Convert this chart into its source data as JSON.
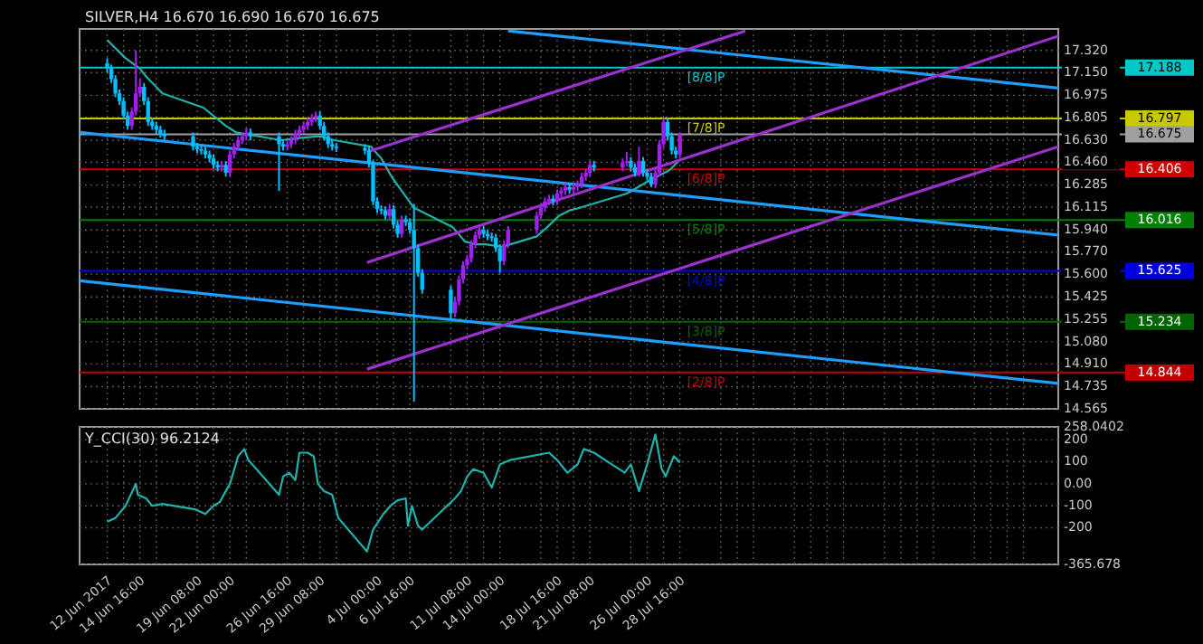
{
  "chart_data": [
    {
      "type": "candlestick",
      "title": "SILVER,H4 16.670 16.690 16.670 16.675",
      "tick_labels": "y",
      "grid": true,
      "x": [
        "2017-06-12T00:00",
        "2017-06-12T08:00",
        "2017-06-12T16:00",
        "2017-06-13T00:00",
        "2017-06-13T08:00",
        "2017-06-13T16:00",
        "2017-06-14T00:00",
        "2017-06-14T08:00",
        "2017-06-14T16:00",
        "2017-06-15T00:00",
        "2017-06-15T08:00",
        "2017-06-15T16:00",
        "2017-06-16T00:00",
        "2017-06-16T08:00",
        "2017-06-16T16:00",
        "2017-06-19T00:00",
        "2017-06-19T08:00",
        "2017-06-19T16:00",
        "2017-06-20T00:00",
        "2017-06-20T08:00",
        "2017-06-20T16:00",
        "2017-06-21T00:00",
        "2017-06-21T08:00",
        "2017-06-21T16:00",
        "2017-06-22T00:00",
        "2017-06-22T08:00",
        "2017-06-22T16:00",
        "2017-06-23T00:00",
        "2017-06-23T08:00",
        "2017-06-23T16:00",
        "2017-06-26T00:00",
        "2017-06-26T08:00",
        "2017-06-26T16:00",
        "2017-06-27T00:00",
        "2017-06-27T08:00",
        "2017-06-27T16:00",
        "2017-06-28T00:00",
        "2017-06-28T08:00",
        "2017-06-28T16:00",
        "2017-06-29T00:00",
        "2017-06-29T08:00",
        "2017-06-29T16:00",
        "2017-06-30T00:00",
        "2017-06-30T08:00",
        "2017-06-30T16:00",
        "2017-07-03T00:00",
        "2017-07-03T08:00",
        "2017-07-03T16:00",
        "2017-07-04T00:00",
        "2017-07-04T08:00",
        "2017-07-04T16:00",
        "2017-07-05T00:00",
        "2017-07-05T08:00",
        "2017-07-05T16:00",
        "2017-07-06T00:00",
        "2017-07-06T08:00",
        "2017-07-06T16:00",
        "2017-07-07T00:00",
        "2017-07-07T08:00",
        "2017-07-07T16:00",
        "2017-07-10T00:00",
        "2017-07-10T08:00",
        "2017-07-10T16:00",
        "2017-07-11T00:00",
        "2017-07-11T08:00",
        "2017-07-11T16:00",
        "2017-07-12T00:00",
        "2017-07-12T08:00",
        "2017-07-12T16:00",
        "2017-07-13T00:00",
        "2017-07-13T08:00",
        "2017-07-13T16:00",
        "2017-07-14T00:00",
        "2017-07-14T08:00",
        "2017-07-14T16:00",
        "2017-07-17T00:00",
        "2017-07-17T08:00",
        "2017-07-17T16:00",
        "2017-07-18T00:00",
        "2017-07-18T08:00",
        "2017-07-18T16:00",
        "2017-07-19T00:00",
        "2017-07-19T08:00",
        "2017-07-19T16:00",
        "2017-07-20T00:00",
        "2017-07-20T08:00",
        "2017-07-20T16:00",
        "2017-07-21T00:00",
        "2017-07-21T08:00",
        "2017-07-21T16:00",
        "2017-07-24T00:00",
        "2017-07-24T08:00",
        "2017-07-24T16:00",
        "2017-07-25T00:00",
        "2017-07-25T08:00",
        "2017-07-25T16:00",
        "2017-07-26T00:00",
        "2017-07-26T08:00",
        "2017-07-26T16:00",
        "2017-07-27T00:00",
        "2017-07-27T08:00",
        "2017-07-27T16:00",
        "2017-07-28T00:00",
        "2017-07-28T08:00",
        "2017-07-28T16:00"
      ],
      "ohlc": [
        [
          17.22,
          17.26,
          17.15,
          17.18
        ],
        [
          17.18,
          17.21,
          17.07,
          17.1
        ],
        [
          17.1,
          17.13,
          16.96,
          16.99
        ],
        [
          16.99,
          17.02,
          16.9,
          16.93
        ],
        [
          16.93,
          16.96,
          16.79,
          16.82
        ],
        [
          16.82,
          16.85,
          16.71,
          16.74
        ],
        [
          16.74,
          16.88,
          16.71,
          16.85
        ],
        [
          16.85,
          17.32,
          16.82,
          16.99
        ],
        [
          16.99,
          17.1,
          16.96,
          17.04
        ],
        [
          17.04,
          17.07,
          16.9,
          16.93
        ],
        [
          16.93,
          16.96,
          16.74,
          16.77
        ],
        [
          16.77,
          16.8,
          16.71,
          16.74
        ],
        [
          16.74,
          16.77,
          16.68,
          16.71
        ],
        [
          16.71,
          16.74,
          16.65,
          16.68
        ],
        [
          16.68,
          16.71,
          16.63,
          16.66
        ],
        [
          16.66,
          16.69,
          16.55,
          16.58
        ],
        [
          16.58,
          16.61,
          16.53,
          16.56
        ],
        [
          16.56,
          16.59,
          16.52,
          16.55
        ],
        [
          16.55,
          16.58,
          16.49,
          16.52
        ],
        [
          16.52,
          16.55,
          16.46,
          16.49
        ],
        [
          16.49,
          16.52,
          16.41,
          16.44
        ],
        [
          16.44,
          16.47,
          16.39,
          16.42
        ],
        [
          16.42,
          16.47,
          16.39,
          16.44
        ],
        [
          16.44,
          16.47,
          16.35,
          16.38
        ],
        [
          16.38,
          16.55,
          16.35,
          16.52
        ],
        [
          16.52,
          16.61,
          16.49,
          16.58
        ],
        [
          16.58,
          16.66,
          16.55,
          16.63
        ],
        [
          16.63,
          16.69,
          16.6,
          16.66
        ],
        [
          16.66,
          16.72,
          16.63,
          16.69
        ],
        [
          16.69,
          16.72,
          16.63,
          16.66
        ],
        [
          16.66,
          16.69,
          16.24,
          16.6
        ],
        [
          16.6,
          16.63,
          16.55,
          16.58
        ],
        [
          16.58,
          16.63,
          16.55,
          16.6
        ],
        [
          16.6,
          16.66,
          16.57,
          16.63
        ],
        [
          16.63,
          16.71,
          16.6,
          16.68
        ],
        [
          16.68,
          16.74,
          16.65,
          16.71
        ],
        [
          16.71,
          16.77,
          16.68,
          16.74
        ],
        [
          16.74,
          16.8,
          16.71,
          16.77
        ],
        [
          16.77,
          16.83,
          16.74,
          16.8
        ],
        [
          16.8,
          16.85,
          16.77,
          16.82
        ],
        [
          16.82,
          16.85,
          16.71,
          16.74
        ],
        [
          16.74,
          16.77,
          16.63,
          16.66
        ],
        [
          16.66,
          16.69,
          16.57,
          16.6
        ],
        [
          16.6,
          16.63,
          16.55,
          16.58
        ],
        [
          16.58,
          16.61,
          16.54,
          16.57
        ],
        [
          16.57,
          16.6,
          16.52,
          16.55
        ],
        [
          16.55,
          16.58,
          16.42,
          16.45
        ],
        [
          16.45,
          16.48,
          16.13,
          16.16
        ],
        [
          16.16,
          16.19,
          16.07,
          16.1
        ],
        [
          16.1,
          16.13,
          16.06,
          16.09
        ],
        [
          16.09,
          16.12,
          16.02,
          16.05
        ],
        [
          16.05,
          16.14,
          16.02,
          16.1
        ],
        [
          16.1,
          16.13,
          15.95,
          15.98
        ],
        [
          15.98,
          16.01,
          15.88,
          15.91
        ],
        [
          15.91,
          16.05,
          15.88,
          16.02
        ],
        [
          16.02,
          16.05,
          15.97,
          16.0
        ],
        [
          16.0,
          16.03,
          15.91,
          15.94
        ],
        [
          15.94,
          16.14,
          14.62,
          15.8
        ],
        [
          15.8,
          15.83,
          15.58,
          15.61
        ],
        [
          15.61,
          15.64,
          15.45,
          15.48
        ],
        [
          15.48,
          15.51,
          15.25,
          15.3
        ],
        [
          15.3,
          15.42,
          15.27,
          15.39
        ],
        [
          15.39,
          15.59,
          15.36,
          15.56
        ],
        [
          15.56,
          15.7,
          15.53,
          15.67
        ],
        [
          15.67,
          15.75,
          15.64,
          15.72
        ],
        [
          15.72,
          15.86,
          15.69,
          15.83
        ],
        [
          15.83,
          15.93,
          15.8,
          15.9
        ],
        [
          15.9,
          15.97,
          15.87,
          15.94
        ],
        [
          15.94,
          15.97,
          15.88,
          15.91
        ],
        [
          15.91,
          15.94,
          15.86,
          15.89
        ],
        [
          15.89,
          15.92,
          15.85,
          15.88
        ],
        [
          15.88,
          15.91,
          15.77,
          15.8
        ],
        [
          15.8,
          15.83,
          15.61,
          15.7
        ],
        [
          15.7,
          15.86,
          15.67,
          15.83
        ],
        [
          15.83,
          15.97,
          15.8,
          15.94
        ],
        [
          15.94,
          16.08,
          15.91,
          16.05
        ],
        [
          16.05,
          16.14,
          16.02,
          16.11
        ],
        [
          16.11,
          16.19,
          16.08,
          16.16
        ],
        [
          16.16,
          16.21,
          16.13,
          16.18
        ],
        [
          16.18,
          16.21,
          16.13,
          16.16
        ],
        [
          16.16,
          16.25,
          16.13,
          16.22
        ],
        [
          16.22,
          16.27,
          16.19,
          16.24
        ],
        [
          16.24,
          16.3,
          16.21,
          16.27
        ],
        [
          16.27,
          16.3,
          16.22,
          16.25
        ],
        [
          16.25,
          16.3,
          16.22,
          16.27
        ],
        [
          16.27,
          16.32,
          16.24,
          16.29
        ],
        [
          16.29,
          16.38,
          16.26,
          16.35
        ],
        [
          16.35,
          16.41,
          16.32,
          16.38
        ],
        [
          16.38,
          16.47,
          16.35,
          16.44
        ],
        [
          16.44,
          16.47,
          16.39,
          16.42
        ],
        [
          16.42,
          16.49,
          16.39,
          16.46
        ],
        [
          16.46,
          16.54,
          16.43,
          16.47
        ],
        [
          16.47,
          16.5,
          16.39,
          16.42
        ],
        [
          16.42,
          16.45,
          16.35,
          16.38
        ],
        [
          16.38,
          16.58,
          16.35,
          16.47
        ],
        [
          16.47,
          16.5,
          16.35,
          16.38
        ],
        [
          16.38,
          16.41,
          16.32,
          16.35
        ],
        [
          16.35,
          16.38,
          16.27,
          16.29
        ],
        [
          16.29,
          16.41,
          16.26,
          16.38
        ],
        [
          16.38,
          16.63,
          16.35,
          16.6
        ],
        [
          16.6,
          16.8,
          16.57,
          16.77
        ],
        [
          16.77,
          16.8,
          16.63,
          16.66
        ],
        [
          16.66,
          16.69,
          16.52,
          16.55
        ],
        [
          16.55,
          16.58,
          16.49,
          16.52
        ],
        [
          16.52,
          16.69,
          16.49,
          16.675
        ]
      ],
      "colors": [
        "#00bfff",
        "#00bfff",
        "#00bfff",
        "#00bfff",
        "#00bfff",
        "#00bfff",
        "#a020f0",
        "#a020f0",
        "#a020f0",
        "#00bfff",
        "#00bfff",
        "#00bfff",
        "#00bfff",
        "#00bfff",
        "#00bfff",
        "#00bfff",
        "#00bfff",
        "#00bfff",
        "#00bfff",
        "#00bfff",
        "#00bfff",
        "#00bfff",
        "#a020f0",
        "#00bfff",
        "#a020f0",
        "#a020f0",
        "#a020f0",
        "#a020f0",
        "#a020f0",
        "#00bfff",
        "#00bfff",
        "#00bfff",
        "#a020f0",
        "#a020f0",
        "#a020f0",
        "#a020f0",
        "#a020f0",
        "#a020f0",
        "#a020f0",
        "#a020f0",
        "#00bfff",
        "#00bfff",
        "#00bfff",
        "#00bfff",
        "#00bfff",
        "#00bfff",
        "#00bfff",
        "#00bfff",
        "#00bfff",
        "#00bfff",
        "#00bfff",
        "#a020f0",
        "#00bfff",
        "#00bfff",
        "#a020f0",
        "#00bfff",
        "#00bfff",
        "#00bfff",
        "#00bfff",
        "#00bfff",
        "#00bfff",
        "#a020f0",
        "#a020f0",
        "#a020f0",
        "#a020f0",
        "#a020f0",
        "#a020f0",
        "#a020f0",
        "#00bfff",
        "#00bfff",
        "#00bfff",
        "#00bfff",
        "#00bfff",
        "#a020f0",
        "#a020f0",
        "#a020f0",
        "#a020f0",
        "#a020f0",
        "#a020f0",
        "#00bfff",
        "#a020f0",
        "#a020f0",
        "#a020f0",
        "#00bfff",
        "#a020f0",
        "#a020f0",
        "#a020f0",
        "#a020f0",
        "#a020f0",
        "#00bfff",
        "#a020f0",
        "#a020f0",
        "#00bfff",
        "#00bfff",
        "#a020f0",
        "#00bfff",
        "#00bfff",
        "#00bfff",
        "#a020f0",
        "#a020f0",
        "#a020f0",
        "#00bfff",
        "#00bfff",
        "#00bfff",
        "#a020f0"
      ],
      "series": [
        {
          "type": "line",
          "color": "#20b2aa",
          "x": [
            "2017-06-12T00:00",
            "2017-06-13T12:00",
            "2017-06-14T16:00",
            "2017-06-15T04:00",
            "2017-06-16T12:00",
            "2017-06-19T20:00",
            "2017-06-21T16:00",
            "2017-06-22T12:00",
            "2017-06-26T04:00",
            "2017-06-28T00:00",
            "2017-06-29T08:00",
            "2017-06-30T12:00",
            "2017-07-03T12:00",
            "2017-07-04T08:00",
            "2017-07-05T04:00",
            "2017-07-06T00:00",
            "2017-07-07T00:00",
            "2017-07-10T04:00",
            "2017-07-11T04:00",
            "2017-07-12T00:00",
            "2017-07-12T20:00",
            "2017-07-14T04:00",
            "2017-07-17T00:00",
            "2017-07-17T20:00",
            "2017-07-18T20:00",
            "2017-07-19T16:00",
            "2017-07-20T12:00",
            "2017-07-24T08:00",
            "2017-07-26T00:00",
            "2017-07-27T20:00",
            "2017-07-28T16:00"
          ],
          "values": [
            17.4,
            17.26,
            17.18,
            17.12,
            16.99,
            16.88,
            16.74,
            16.69,
            16.63,
            16.65,
            16.66,
            16.63,
            16.58,
            16.49,
            16.35,
            16.24,
            16.11,
            15.96,
            15.85,
            15.83,
            15.83,
            15.81,
            15.89,
            15.96,
            16.05,
            16.09,
            16.11,
            16.22,
            16.31,
            16.4,
            16.48
          ]
        },
        {
          "type": "line",
          "color": "#1e9fff",
          "x": [
            "2017-06-09T18:00",
            "2017-08-28T12:00"
          ],
          "values": [
            16.69,
            15.9
          ]
        },
        {
          "type": "line",
          "color": "#1e9fff",
          "x": [
            "2017-06-09T18:00",
            "2017-08-28T12:00"
          ],
          "values": [
            15.55,
            14.76
          ]
        },
        {
          "type": "line",
          "color": "#1e9fff",
          "x": [
            "2017-07-14T16:00",
            "2017-08-28T12:00"
          ],
          "values": [
            17.47,
            17.03
          ]
        },
        {
          "type": "line",
          "color": "#9932cc",
          "x": [
            "2017-07-03T04:00",
            "2017-08-03T00:00"
          ],
          "values": [
            16.54,
            17.47
          ]
        },
        {
          "type": "line",
          "color": "#9932cc",
          "x": [
            "2017-07-03T04:00",
            "2017-08-28T12:00"
          ],
          "values": [
            15.69,
            17.43
          ]
        },
        {
          "type": "line",
          "color": "#9932cc",
          "x": [
            "2017-07-03T04:00",
            "2017-08-28T12:00"
          ],
          "values": [
            14.87,
            16.58
          ]
        }
      ],
      "ref_lines": [
        {
          "axis": "y",
          "value": 17.188,
          "label": "17.188",
          "color": "#00c8c8"
        },
        {
          "axis": "y",
          "value": 16.797,
          "label": "16.797",
          "color": "#c8c800"
        },
        {
          "axis": "y",
          "value": 16.406,
          "label": "16.406",
          "color": "#d00000"
        },
        {
          "axis": "y",
          "value": 16.016,
          "label": "16.016",
          "color": "#008000"
        },
        {
          "axis": "y",
          "value": 15.625,
          "label": "15.625",
          "color": "#0000e0"
        },
        {
          "axis": "y",
          "value": 15.234,
          "label": "15.234",
          "color": "#006400"
        },
        {
          "axis": "y",
          "value": 14.844,
          "label": "14.844",
          "color": "#c00000"
        },
        {
          "axis": "y",
          "value": 16.675,
          "label": "16.675",
          "color": "#a0a0a0"
        }
      ],
      "annotations": [
        {
          "text": "[8/8]P",
          "x": "2017-07-28T16:00",
          "y": 17.188
        },
        {
          "text": "[7/8]P",
          "x": "2017-07-28T16:00",
          "y": 16.797
        },
        {
          "text": "[6/8]P",
          "x": "2017-07-28T16:00",
          "y": 16.406
        },
        {
          "text": "[5/8]P",
          "x": "2017-07-28T16:00",
          "y": 16.016
        },
        {
          "text": "[4/8]P",
          "x": "2017-07-28T16:00",
          "y": 15.625
        },
        {
          "text": "[3/8]P",
          "x": "2017-07-28T16:00",
          "y": 15.234
        },
        {
          "text": "[2/8]P",
          "x": "2017-07-28T16:00",
          "y": 14.844
        }
      ],
      "xlim": [
        "2017-06-09T18:00",
        "2017-08-28T12:00"
      ],
      "ylim": [
        14.565,
        17.485
      ],
      "xticks": [
        {
          "value": "2017-06-12T00:00",
          "label": null
        },
        {
          "value": "2017-06-13T08:00",
          "label": null
        },
        {
          "value": "2017-06-14T16:00",
          "label": null
        },
        {
          "value": "2017-06-16T00:00",
          "label": null
        },
        {
          "value": "2017-06-19T08:00",
          "label": null
        },
        {
          "value": "2017-06-20T16:00",
          "label": null
        },
        {
          "value": "2017-06-22T00:00",
          "label": null
        },
        {
          "value": "2017-06-23T08:00",
          "label": null
        },
        {
          "value": "2017-06-26T16:00",
          "label": null
        },
        {
          "value": "2017-06-28T00:00",
          "label": null
        },
        {
          "value": "2017-06-29T08:00",
          "label": null
        },
        {
          "value": "2017-06-30T16:00",
          "label": null
        },
        {
          "value": "2017-07-04T00:00",
          "label": null
        },
        {
          "value": "2017-07-05T08:00",
          "label": null
        },
        {
          "value": "2017-07-06T16:00",
          "label": null
        },
        {
          "value": "2017-07-10T00:00",
          "label": null
        },
        {
          "value": "2017-07-11T08:00",
          "label": null
        },
        {
          "value": "2017-07-12T16:00",
          "label": null
        },
        {
          "value": "2017-07-14T00:00",
          "label": null
        },
        {
          "value": "2017-07-17T08:00",
          "label": null
        },
        {
          "value": "2017-07-18T16:00",
          "label": null
        },
        {
          "value": "2017-07-20T00:00",
          "label": null
        },
        {
          "value": "2017-07-21T08:00",
          "label": null
        },
        {
          "value": "2017-07-24T16:00",
          "label": null
        },
        {
          "value": "2017-07-26T00:00",
          "label": null
        },
        {
          "value": "2017-07-27T08:00",
          "label": null
        },
        {
          "value": "2017-07-28T16:00",
          "label": null
        },
        {
          "value": "2017-08-01T00:00",
          "label": null
        },
        {
          "value": "2017-08-02T08:00",
          "label": null
        },
        {
          "value": "2017-08-03T16:00",
          "label": null
        },
        {
          "value": "2017-08-07T00:00",
          "label": null
        },
        {
          "value": "2017-08-08T08:00",
          "label": null
        },
        {
          "value": "2017-08-09T16:00",
          "label": null
        },
        {
          "value": "2017-08-11T00:00",
          "label": null
        },
        {
          "value": "2017-08-14T08:00",
          "label": null
        },
        {
          "value": "2017-08-15T16:00",
          "label": null
        },
        {
          "value": "2017-08-17T00:00",
          "label": null
        },
        {
          "value": "2017-08-18T08:00",
          "label": null
        },
        {
          "value": "2017-08-21T16:00",
          "label": null
        },
        {
          "value": "2017-08-23T00:00",
          "label": null
        },
        {
          "value": "2017-08-24T08:00",
          "label": null
        },
        {
          "value": "2017-08-25T16:00",
          "label": null
        }
      ],
      "yticks": [
        {
          "value": 17.32,
          "label": "17.320"
        },
        {
          "value": 17.15,
          "label": "17.150"
        },
        {
          "value": 16.975,
          "label": "16.975"
        },
        {
          "value": 16.805,
          "label": "16.805"
        },
        {
          "value": 16.63,
          "label": "16.630"
        },
        {
          "value": 16.46,
          "label": "16.460"
        },
        {
          "value": 16.285,
          "label": "16.285"
        },
        {
          "value": 16.115,
          "label": "16.115"
        },
        {
          "value": 15.94,
          "label": "15.940"
        },
        {
          "value": 15.77,
          "label": "15.770"
        },
        {
          "value": 15.6,
          "label": "15.600"
        },
        {
          "value": 15.425,
          "label": "15.425"
        },
        {
          "value": 15.255,
          "label": "15.255"
        },
        {
          "value": 15.08,
          "label": "15.080"
        },
        {
          "value": 14.91,
          "label": "14.910"
        },
        {
          "value": 14.735,
          "label": "14.735"
        },
        {
          "value": 14.565,
          "label": "14.565"
        }
      ]
    },
    {
      "type": "line",
      "title": "Y_CCI(30) 96.2124",
      "grid": true,
      "series": [
        {
          "color": "#20b2aa",
          "x": [
            "2017-06-12T00:00",
            "2017-06-12T16:00",
            "2017-06-13T12:00",
            "2017-06-14T08:00",
            "2017-06-14T12:00",
            "2017-06-15T04:00",
            "2017-06-15T16:00",
            "2017-06-16T12:00",
            "2017-06-19T04:00",
            "2017-06-20T00:00",
            "2017-06-20T16:00",
            "2017-06-21T04:00",
            "2017-06-22T00:00",
            "2017-06-22T16:00",
            "2017-06-23T04:00",
            "2017-06-23T12:00",
            "2017-06-26T00:00",
            "2017-06-26T08:00",
            "2017-06-26T20:00",
            "2017-06-27T08:00",
            "2017-06-27T16:00",
            "2017-06-28T08:00",
            "2017-06-28T20:00",
            "2017-06-29T04:00",
            "2017-06-29T16:00",
            "2017-06-30T08:00",
            "2017-06-30T20:00",
            "2017-07-03T04:00",
            "2017-07-03T16:00",
            "2017-07-04T12:00",
            "2017-07-05T04:00",
            "2017-07-05T16:00",
            "2017-07-06T08:00",
            "2017-07-06T12:00",
            "2017-07-06T20:00",
            "2017-07-07T08:00",
            "2017-07-07T16:00",
            "2017-07-10T08:00",
            "2017-07-10T20:00",
            "2017-07-11T08:00",
            "2017-07-11T20:00",
            "2017-07-12T16:00",
            "2017-07-13T08:00",
            "2017-07-14T00:00",
            "2017-07-14T20:00",
            "2017-07-18T00:00",
            "2017-07-18T16:00",
            "2017-07-19T12:00",
            "2017-07-20T08:00",
            "2017-07-20T20:00",
            "2017-07-21T16:00",
            "2017-07-24T04:00",
            "2017-07-24T16:00",
            "2017-07-25T08:00",
            "2017-07-26T00:00",
            "2017-07-26T16:00",
            "2017-07-27T04:00",
            "2017-07-27T12:00",
            "2017-07-28T04:00",
            "2017-07-28T12:00",
            "2017-07-28T16:00"
          ],
          "values": [
            -172,
            -155,
            -100,
            0,
            -50,
            -66,
            -100,
            -91,
            -116,
            -137,
            -100,
            -83,
            0,
            125,
            158,
            108,
            -50,
            33,
            50,
            17,
            141,
            141,
            125,
            0,
            -33,
            -50,
            -155,
            -307,
            -208,
            -137,
            -95,
            -75,
            -66,
            -191,
            -100,
            -191,
            -208,
            -66,
            -33,
            33,
            66,
            50,
            -17,
            88,
            108,
            141,
            108,
            50,
            88,
            158,
            141,
            50,
            88,
            -33,
            88,
            224,
            70,
            33,
            125,
            108,
            96
          ]
        }
      ],
      "xlim": [
        "2017-06-09T18:00",
        "2017-08-28T12:00"
      ],
      "ylim": [
        -365.678,
        258.0402
      ],
      "xticks": [
        {
          "value": "2017-06-12T00:00",
          "label": "12 Jun 2017"
        },
        {
          "value": "2017-06-13T08:00",
          "label": null
        },
        {
          "value": "2017-06-14T16:00",
          "label": "14 Jun 16:00"
        },
        {
          "value": "2017-06-16T00:00",
          "label": null
        },
        {
          "value": "2017-06-19T08:00",
          "label": "19 Jun 08:00"
        },
        {
          "value": "2017-06-20T16:00",
          "label": null
        },
        {
          "value": "2017-06-22T00:00",
          "label": "22 Jun 00:00"
        },
        {
          "value": "2017-06-23T08:00",
          "label": null
        },
        {
          "value": "2017-06-26T16:00",
          "label": "26 Jun 16:00"
        },
        {
          "value": "2017-06-28T00:00",
          "label": null
        },
        {
          "value": "2017-06-29T08:00",
          "label": "29 Jun 08:00"
        },
        {
          "value": "2017-06-30T16:00",
          "label": null
        },
        {
          "value": "2017-07-04T00:00",
          "label": "4 Jul 00:00"
        },
        {
          "value": "2017-07-05T08:00",
          "label": null
        },
        {
          "value": "2017-07-06T16:00",
          "label": "6 Jul 16:00"
        },
        {
          "value": "2017-07-10T00:00",
          "label": null
        },
        {
          "value": "2017-07-11T08:00",
          "label": "11 Jul 08:00"
        },
        {
          "value": "2017-07-12T16:00",
          "label": null
        },
        {
          "value": "2017-07-14T00:00",
          "label": "14 Jul 00:00"
        },
        {
          "value": "2017-07-17T08:00",
          "label": null
        },
        {
          "value": "2017-07-18T16:00",
          "label": "18 Jul 16:00"
        },
        {
          "value": "2017-07-20T00:00",
          "label": null
        },
        {
          "value": "2017-07-21T08:00",
          "label": "21 Jul 08:00"
        },
        {
          "value": "2017-07-24T16:00",
          "label": null
        },
        {
          "value": "2017-07-26T00:00",
          "label": "26 Jul 00:00"
        },
        {
          "value": "2017-07-27T08:00",
          "label": null
        },
        {
          "value": "2017-07-28T16:00",
          "label": "28 Jul 16:00"
        },
        {
          "value": "2017-08-01T00:00",
          "label": null
        },
        {
          "value": "2017-08-02T08:00",
          "label": null
        },
        {
          "value": "2017-08-03T16:00",
          "label": null
        },
        {
          "value": "2017-08-07T00:00",
          "label": null
        },
        {
          "value": "2017-08-08T08:00",
          "label": null
        },
        {
          "value": "2017-08-09T16:00",
          "label": null
        },
        {
          "value": "2017-08-11T00:00",
          "label": null
        },
        {
          "value": "2017-08-14T08:00",
          "label": null
        },
        {
          "value": "2017-08-15T16:00",
          "label": null
        },
        {
          "value": "2017-08-17T00:00",
          "label": null
        },
        {
          "value": "2017-08-18T08:00",
          "label": null
        },
        {
          "value": "2017-08-21T16:00",
          "label": null
        },
        {
          "value": "2017-08-23T00:00",
          "label": null
        },
        {
          "value": "2017-08-24T08:00",
          "label": null
        },
        {
          "value": "2017-08-25T16:00",
          "label": null
        }
      ],
      "yticks": [
        {
          "value": 258.0402,
          "label": "258.0402"
        },
        200,
        100,
        {
          "value": 0,
          "label": "0.00"
        },
        -100,
        -200,
        {
          "value": -365.678,
          "label": "-365.678"
        }
      ]
    }
  ]
}
